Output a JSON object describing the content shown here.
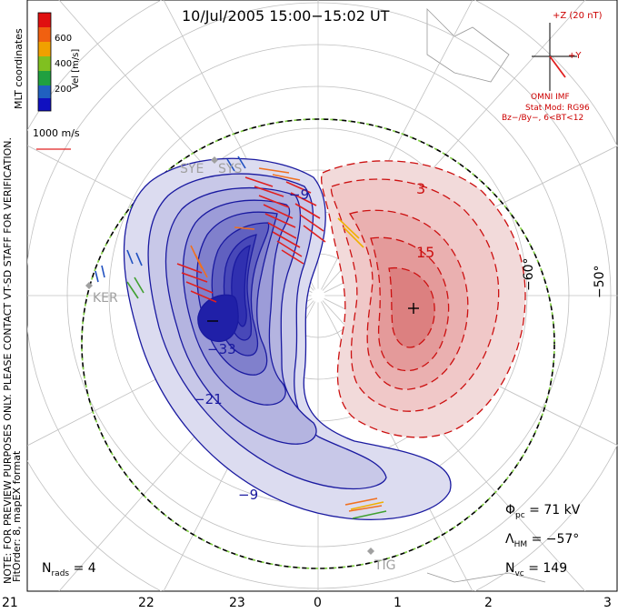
{
  "title": "10/Jul/2005  15:00−15:02  UT",
  "side_notes": {
    "preview": "NOTE: FOR PREVIEW PURPOSES ONLY. PLEASE CONTACT VT-SD STAFF FOR VERIFICATION.",
    "fitorder": "FitOrder: 8, mapEX format"
  },
  "coords": "MLT coordinates",
  "colorbar": {
    "label": "Vel [m/s]",
    "ticks": [
      "600",
      "400",
      "200"
    ],
    "colors": [
      "#e01010",
      "#f06010",
      "#f0a000",
      "#80c020",
      "#20a040",
      "#2060c0",
      "#1010c0"
    ]
  },
  "scale": {
    "label": "1000 m/s"
  },
  "imf": {
    "z_label": "+Z (20 nT)",
    "y_label": "+Y",
    "source": "OMNI IMF",
    "stat_mod": "Stat Mod: RG96",
    "condition": "Bz−/By−, 6<BT<12"
  },
  "lat_labels": [
    "−60°",
    "−50°"
  ],
  "mlt_labels": [
    "21",
    "22",
    "23",
    "0",
    "1",
    "2",
    "3"
  ],
  "stations": [
    "SYE",
    "SYS",
    "KER",
    "TIG"
  ],
  "contours": {
    "negative": [
      "−9",
      "−21",
      "−33",
      "−9"
    ],
    "positive": [
      "3",
      "15"
    ],
    "min_marker": "−",
    "max_marker": "+"
  },
  "stats": {
    "phi_sym": "Φ",
    "phi_sub": "pc",
    "phi_val": "=  71  kV",
    "lambda_sym": "Λ",
    "lambda_sub": "HM",
    "lambda_val": "=  −57°",
    "nvc_sym": "N",
    "nvc_sub": "vc",
    "nvc_val": "=  149",
    "nrads_sym": "N",
    "nrads_sub": "rads",
    "nrads_val": "=  4"
  }
}
